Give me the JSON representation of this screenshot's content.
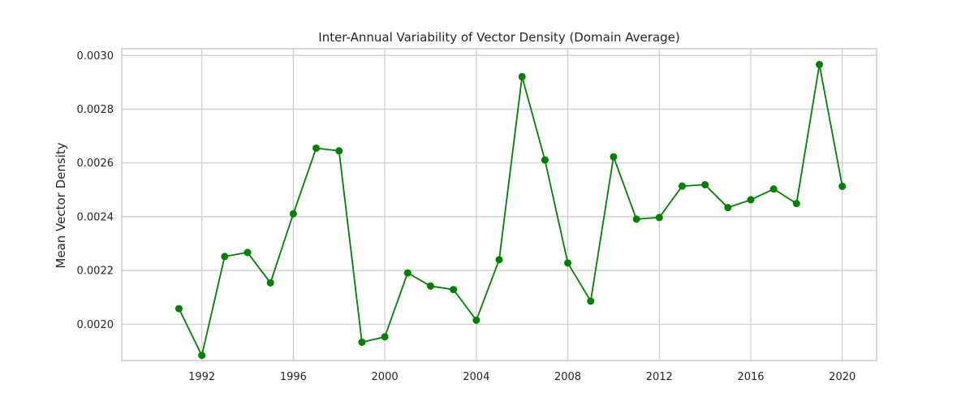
{
  "chart_data": {
    "type": "line",
    "title": "Inter-Annual Variability of Vector Density (Domain Average)",
    "xlabel": "",
    "ylabel": "Mean Vector Density",
    "xlim": [
      1988.5,
      2021.5
    ],
    "ylim": [
      0.001865,
      0.003025
    ],
    "xticks": [
      1992,
      1996,
      2000,
      2004,
      2008,
      2012,
      2016,
      2020
    ],
    "xtick_labels": [
      "1992",
      "1996",
      "2000",
      "2004",
      "2008",
      "2012",
      "2016",
      "2020"
    ],
    "yticks": [
      0.002,
      0.0022,
      0.0024,
      0.0026,
      0.0028,
      0.003
    ],
    "ytick_labels": [
      "0.0020",
      "0.0022",
      "0.0024",
      "0.0026",
      "0.0028",
      "0.0030"
    ],
    "grid": true,
    "series": [
      {
        "color": "#008000",
        "marker": "circle",
        "x": [
          1991,
          1992,
          1993,
          1994,
          1995,
          1996,
          1997,
          1998,
          1999,
          2000,
          2001,
          2002,
          2003,
          2004,
          2005,
          2006,
          2007,
          2008,
          2009,
          2010,
          2011,
          2012,
          2013,
          2014,
          2015,
          2016,
          2017,
          2018,
          2019,
          2020
        ],
        "y": [
          0.002058,
          0.001884,
          0.002252,
          0.002267,
          0.002154,
          0.002411,
          0.002655,
          0.002645,
          0.001933,
          0.001953,
          0.002191,
          0.002142,
          0.002129,
          0.002015,
          0.00224,
          0.002921,
          0.002611,
          0.002228,
          0.002086,
          0.002623,
          0.002391,
          0.002397,
          0.002514,
          0.002519,
          0.002434,
          0.002463,
          0.002503,
          0.002449,
          0.002966,
          0.002513
        ]
      }
    ]
  }
}
